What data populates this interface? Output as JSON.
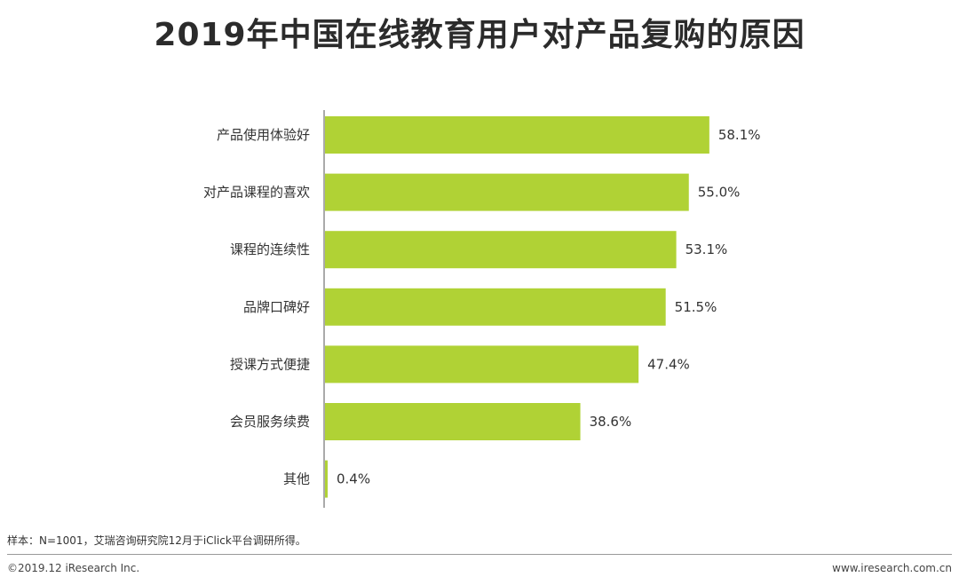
{
  "title": "2019年中国在线教育用户对产品复购的原因",
  "chart_data": {
    "type": "bar",
    "orientation": "horizontal",
    "title": "2019年中国在线教育用户对产品复购的原因",
    "categories": [
      "产品使用体验好",
      "对产品课程的喜欢",
      "课程的连续性",
      "品牌口碑好",
      "授课方式便捷",
      "会员服务续费",
      "其他"
    ],
    "values": [
      58.1,
      55.0,
      53.1,
      51.5,
      47.4,
      38.6,
      0.4
    ],
    "value_labels": [
      "58.1%",
      "55.0%",
      "53.1%",
      "51.5%",
      "47.4%",
      "38.6%",
      "0.4%"
    ],
    "xlim": [
      0,
      100
    ],
    "grid": false,
    "bar_color": "#b0d235"
  },
  "footer": {
    "note": "样本：N=1001，艾瑞咨询研究院12月于iClick平台调研所得。",
    "copyright": "©2019.12 iResearch Inc.",
    "website": "www.iresearch.com.cn"
  }
}
